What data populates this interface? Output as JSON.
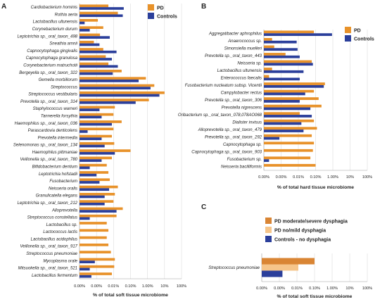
{
  "colors": {
    "PD": "#e8922a",
    "Controls": "#2b3f9b",
    "PD moderate/severe dysphagia": "#d98534",
    "PD no/mild dysphagia": "#f6c58a",
    "Controls - no dysphagia": "#2b3f9b"
  },
  "chart_data": [
    {
      "panel": "A",
      "type": "bar",
      "orientation": "horizontal",
      "scale": "log",
      "xlabel": "% of total soft tissue microbiome",
      "xticks": [
        "0.00%",
        "0.00%",
        "0.01%",
        "0.10%",
        "1.00%",
        "10%",
        "100%"
      ],
      "xlim_decades": [
        -4,
        2
      ],
      "legend": "top-right",
      "categories": [
        "Cardiobacterium hominis",
        "Rothia aeria",
        "Lactobacillus ultunensis",
        "Corynebacterium durum",
        "Leptotrichia sp._oral_taxon_498",
        "Sneathia amnii",
        "Capnocytophaga gingivalis",
        "Capnocytophaga granulosa",
        "Corynebacterium matruchotii",
        "Bergeyella sp._oral_taxon_322",
        "Gemella morbillorum",
        "Streptococcus",
        "Streptococcus vestibularis",
        "Prevotella sp._oral_taxon_314",
        "Staphylococcus warneri",
        "Tannerella forsythia",
        "Haemophilus sp._oral_taxon_036",
        "Parascardovia denticolens",
        "Prevotella intermedia",
        "Selenomonas sp._oral_taxon_134",
        "Haemophilus pittmaniae",
        "Veillonella sp._oral_taxon_780",
        "Bifidobacterium dentium",
        "Leptotrichia hofstadii",
        "Fusobacterium",
        "Neisseria oralis",
        "Granulicatella elegans",
        "Leptotrichia sp._oral_taxon_212",
        "Alloprevotella",
        "Streptococcus constellatus",
        "Lactobacillus sp.",
        "Lactococcus lactis",
        "Lactobacillus acidophilus",
        "Veillonella sp._oral_taxon_917",
        "Streptococcus pneumoniae",
        "Mycoplasma orale",
        "Mitsuokella sp._oral_taxon_521",
        "Lactobacillus fermentum"
      ],
      "series": [
        {
          "name": "PD",
          "values": [
            0.005,
            0.018,
            0.0012,
            0.0025,
            0.0016,
            0.0007,
            0.0025,
            0.0035,
            0.005,
            0.03,
            0.8,
            2.5,
            10,
            1.2,
            0.012,
            0.01,
            0.03,
            0.01,
            0.008,
            0.011,
            0.1,
            0.008,
            0.004,
            0.005,
            0.006,
            0.018,
            0.012,
            0.01,
            0.035,
            0.015,
            0.004,
            0.005,
            0.004,
            0.005,
            0.007,
            0.012,
            0.011,
            0.008
          ]
        },
        {
          "name": "Controls",
          "values": [
            0.04,
            0.035,
            0.0002,
            0.0004,
            0.006,
            0.0015,
            0.015,
            0.008,
            0.018,
            0.009,
            0.3,
            1.5,
            5,
            0.2,
            0.0015,
            0.002,
            0.008,
            0.0003,
            0.002,
            0.003,
            0.012,
            0.002,
            0.0004,
            0.001,
            0.0015,
            0.0055,
            0.003,
            0.003,
            0.015,
            0.0004,
            0.0001,
            0.0001,
            0.0001,
            0.0001,
            0.0001,
            0.0008,
            0.0004,
            0.0005
          ]
        }
      ]
    },
    {
      "panel": "B",
      "type": "bar",
      "orientation": "horizontal",
      "scale": "log",
      "xlabel": "% of total hard tissue microbiome",
      "xticks": [
        "0.00%",
        "0.00%",
        "0.01%",
        "0.10%",
        "1.00%",
        "10%",
        "100%"
      ],
      "xlim_decades": [
        -4,
        2
      ],
      "legend": "top-right",
      "categories": [
        "Aggregatibacter aphrophilus",
        "Anaerococcus sp.",
        "Simonsiella muelleri",
        "Prevotella sp._oral_taxon_443",
        "Neisseria sp.",
        "Lactobacillus ultunensis",
        "Enterococcus faecalis",
        "Fusobacterium nucleatum subsp. Vicentii",
        "Campylobacter rectus",
        "Prevotella sp._oral_taxon_306",
        "Prevotella nigrescens",
        "Oribacterium sp._oral_taxon_078,078AO068",
        "Dialister invisus",
        "Alloprevotella sp._oral_taxon_479",
        "Prevotella sp._oral_taxon_292",
        "Capnocytophaga sp.",
        "Capnocytophaga sp._oral_taxon_903",
        "Fusobacterium sp.",
        "Neisseria bacilliformis"
      ],
      "series": [
        {
          "name": "PD",
          "values": [
            0.08,
            0.0003,
            0.0004,
            0.0018,
            0.06,
            0.0003,
            0.0002,
            0.35,
            0.08,
            0.15,
            0.22,
            0.012,
            0.08,
            0.12,
            0.06,
            0.08,
            0.07,
            0.05,
            0.1
          ]
        },
        {
          "name": "Controls",
          "values": [
            0.9,
            0.008,
            0.009,
            0.012,
            0.07,
            0.02,
            0.012,
            0.3,
            0.025,
            0.012,
            0.05,
            0.06,
            0.015,
            0.02,
            0.0008,
            0.0001,
            0.0001,
            0.0002,
            0.0001
          ]
        }
      ]
    },
    {
      "panel": "C",
      "type": "bar",
      "orientation": "horizontal",
      "scale": "log",
      "xlabel": "% of total soft tissue microbiome",
      "xticks": [
        "0.00%",
        "0.00%",
        "0.01%",
        "0.10%",
        "1.00%",
        "10%",
        "100%"
      ],
      "xlim_decades": [
        -4,
        2
      ],
      "legend": "top",
      "categories": [
        "Streptococcus pneumoniae"
      ],
      "series": [
        {
          "name": "PD moderate/severe dysphagia",
          "values": [
            0.1
          ]
        },
        {
          "name": "PD no/mild dysphagia",
          "values": [
            0.012
          ]
        },
        {
          "name": "Controls - no dysphagia",
          "values": [
            0.0015
          ]
        }
      ]
    }
  ]
}
